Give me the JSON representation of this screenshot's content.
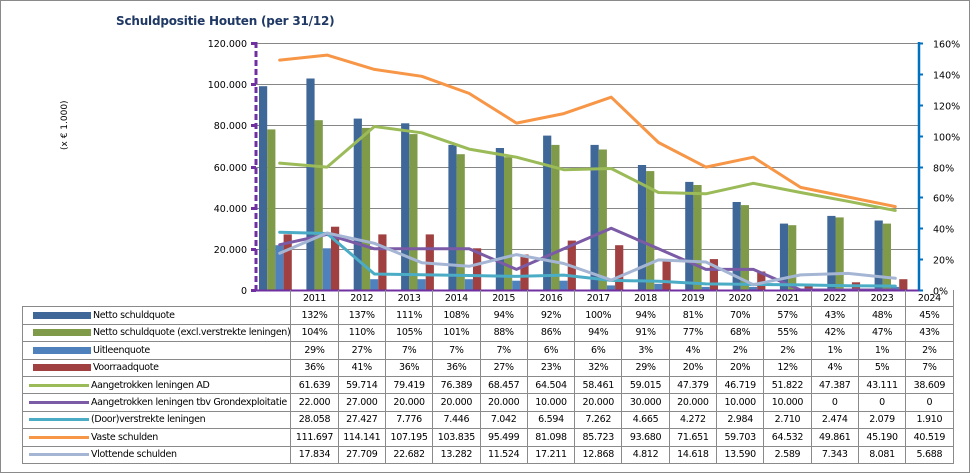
{
  "chart_data": {
    "type": "bar",
    "title": "Schuldpositie Houten (per 31/12)",
    "ylabel": "(x € 1.000)",
    "y2label": "",
    "xlabel": "",
    "ylim": [
      0,
      120000
    ],
    "y2lim": [
      0,
      1.6
    ],
    "yticks": [
      "0",
      "20.000",
      "40.000",
      "60.000",
      "80.000",
      "100.000",
      "120.000"
    ],
    "y2ticks": [
      "0%",
      "20%",
      "40%",
      "60%",
      "80%",
      "100%",
      "120%",
      "140%",
      "160%"
    ],
    "grid": true,
    "legend": "data-table-below",
    "categories": [
      "2011",
      "2012",
      "2013",
      "2014",
      "2015",
      "2016",
      "2017",
      "2018",
      "2019",
      "2020",
      "2021",
      "2022",
      "2023",
      "2024"
    ],
    "series": [
      {
        "name": "Netto schuldquote",
        "kind": "bar",
        "axis": "right",
        "color": "#3F6798",
        "values": [
          1.32,
          1.37,
          1.11,
          1.08,
          0.94,
          0.92,
          1.0,
          0.94,
          0.81,
          0.7,
          0.57,
          0.43,
          0.48,
          0.45
        ],
        "labels": [
          "132%",
          "137%",
          "111%",
          "108%",
          "94%",
          "92%",
          "100%",
          "94%",
          "81%",
          "70%",
          "57%",
          "43%",
          "48%",
          "45%"
        ]
      },
      {
        "name": "Netto schuldquote (excl.verstrekte leningen)",
        "kind": "bar",
        "axis": "right",
        "color": "#7F9A48",
        "values": [
          1.04,
          1.1,
          1.05,
          1.01,
          0.88,
          0.86,
          0.94,
          0.91,
          0.77,
          0.68,
          0.55,
          0.42,
          0.47,
          0.43
        ],
        "labels": [
          "104%",
          "110%",
          "105%",
          "101%",
          "88%",
          "86%",
          "94%",
          "91%",
          "77%",
          "68%",
          "55%",
          "42%",
          "47%",
          "43%"
        ]
      },
      {
        "name": "Uitleenquote",
        "kind": "bar",
        "axis": "right",
        "color": "#4F81BD",
        "values": [
          0.29,
          0.27,
          0.07,
          0.07,
          0.07,
          0.06,
          0.06,
          0.03,
          0.04,
          0.02,
          0.02,
          0.01,
          0.01,
          0.02
        ],
        "labels": [
          "29%",
          "27%",
          "7%",
          "7%",
          "7%",
          "6%",
          "6%",
          "3%",
          "4%",
          "2%",
          "2%",
          "1%",
          "1%",
          "2%"
        ]
      },
      {
        "name": "Voorraadquote",
        "kind": "bar",
        "axis": "right",
        "color": "#A04040",
        "values": [
          0.36,
          0.41,
          0.36,
          0.36,
          0.27,
          0.23,
          0.32,
          0.29,
          0.2,
          0.2,
          0.12,
          0.04,
          0.05,
          0.07
        ],
        "labels": [
          "36%",
          "41%",
          "36%",
          "36%",
          "27%",
          "23%",
          "32%",
          "29%",
          "20%",
          "20%",
          "12%",
          "4%",
          "5%",
          "7%"
        ]
      },
      {
        "name": "Aangetrokken leningen AD",
        "kind": "line",
        "axis": "left",
        "color": "#9BBB59",
        "values": [
          61639,
          59714,
          79419,
          76389,
          68457,
          64504,
          58461,
          59015,
          47379,
          46719,
          51822,
          47387,
          43111,
          38609
        ],
        "labels": [
          "61.639",
          "59.714",
          "79.419",
          "76.389",
          "68.457",
          "64.504",
          "58.461",
          "59.015",
          "47.379",
          "46.719",
          "51.822",
          "47.387",
          "43.111",
          "38.609"
        ]
      },
      {
        "name": "Aangetrokken leningen tbv Grondexploitatie",
        "kind": "line",
        "axis": "left",
        "color": "#7B5AA6",
        "values": [
          22000,
          27000,
          20000,
          20000,
          20000,
          10000,
          20000,
          30000,
          20000,
          10000,
          10000,
          0,
          0,
          0
        ],
        "labels": [
          "22.000",
          "27.000",
          "20.000",
          "20.000",
          "20.000",
          "10.000",
          "20.000",
          "30.000",
          "20.000",
          "10.000",
          "10.000",
          "0",
          "0",
          "0"
        ]
      },
      {
        "name": "(Door)verstrekte leningen",
        "kind": "line",
        "axis": "left",
        "color": "#4BACC6",
        "values": [
          28058,
          27427,
          7776,
          7446,
          7042,
          6594,
          7262,
          4665,
          4272,
          2984,
          2710,
          2474,
          2079,
          1910
        ],
        "labels": [
          "28.058",
          "27.427",
          "7.776",
          "7.446",
          "7.042",
          "6.594",
          "7.262",
          "4.665",
          "4.272",
          "2.984",
          "2.710",
          "2.474",
          "2.079",
          "1.910"
        ]
      },
      {
        "name": "Vaste schulden",
        "kind": "line",
        "axis": "left",
        "color": "#F79646",
        "values": [
          111697,
          114141,
          107195,
          103835,
          95499,
          81098,
          85723,
          93680,
          71651,
          59703,
          64532,
          49861,
          45190,
          40519
        ],
        "labels": [
          "111.697",
          "114.141",
          "107.195",
          "103.835",
          "95.499",
          "81.098",
          "85.723",
          "93.680",
          "71.651",
          "59.703",
          "64.532",
          "49.861",
          "45.190",
          "40.519"
        ]
      },
      {
        "name": "Vlottende schulden",
        "kind": "line",
        "axis": "left",
        "color": "#A5B6D5",
        "values": [
          17834,
          27709,
          22682,
          13282,
          11524,
          17211,
          12868,
          4812,
          14618,
          13590,
          2589,
          7343,
          8081,
          5688
        ],
        "labels": [
          "17.834",
          "27.709",
          "22.682",
          "13.282",
          "11.524",
          "17.211",
          "12.868",
          "4.812",
          "14.618",
          "13.590",
          "2.589",
          "7.343",
          "8.081",
          "5.688"
        ]
      }
    ]
  }
}
